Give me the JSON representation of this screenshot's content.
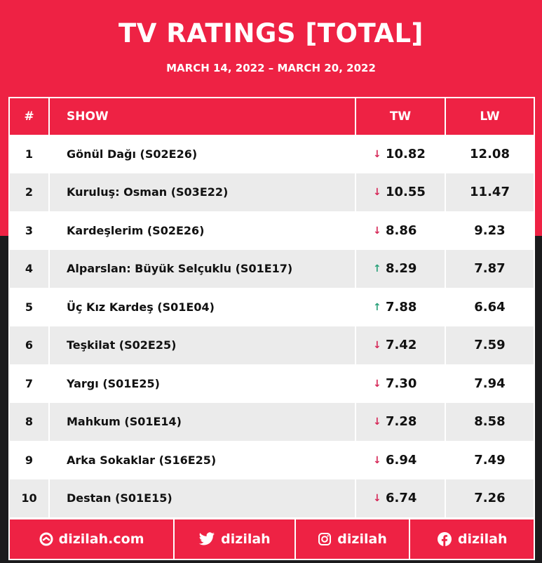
{
  "header": {
    "title": "TV RATINGS [TOTAL]",
    "date_range": "MARCH 14, 2022 – MARCH 20, 2022"
  },
  "table": {
    "columns": [
      "#",
      "SHOW",
      "TW",
      "LW"
    ],
    "rows": [
      {
        "rank": "1",
        "show": "Gönül Dağı (S02E26)",
        "trend": "down",
        "tw": "10.82",
        "lw": "12.08"
      },
      {
        "rank": "2",
        "show": "Kuruluş: Osman (S03E22)",
        "trend": "down",
        "tw": "10.55",
        "lw": "11.47"
      },
      {
        "rank": "3",
        "show": "Kardeşlerim (S02E26)",
        "trend": "down",
        "tw": "8.86",
        "lw": "9.23"
      },
      {
        "rank": "4",
        "show": "Alparslan: Büyük Selçuklu (S01E17)",
        "trend": "up",
        "tw": "8.29",
        "lw": "7.87"
      },
      {
        "rank": "5",
        "show": "Üç Kız Kardeş (S01E04)",
        "trend": "up",
        "tw": "7.88",
        "lw": "6.64"
      },
      {
        "rank": "6",
        "show": "Teşkilat (S02E25)",
        "trend": "down",
        "tw": "7.42",
        "lw": "7.59"
      },
      {
        "rank": "7",
        "show": "Yargı (S01E25)",
        "trend": "down",
        "tw": "7.30",
        "lw": "7.94"
      },
      {
        "rank": "8",
        "show": "Mahkum (S01E14)",
        "trend": "down",
        "tw": "7.28",
        "lw": "8.58"
      },
      {
        "rank": "9",
        "show": "Arka Sokaklar (S16E25)",
        "trend": "down",
        "tw": "6.94",
        "lw": "7.49"
      },
      {
        "rank": "10",
        "show": "Destan (S01E15)",
        "trend": "down",
        "tw": "6.74",
        "lw": "7.26"
      }
    ]
  },
  "footer": {
    "website": "dizilah.com",
    "twitter": "dizilah",
    "instagram": "dizilah",
    "facebook": "dizilah"
  },
  "colors": {
    "brand_red": "#ee2244",
    "dark": "#1b1b1d",
    "trend_down": "#d62858",
    "trend_up": "#2aa17a",
    "row_alt": "#ebebeb"
  },
  "icons": {
    "trend_down": "arrow-down-icon",
    "trend_up": "arrow-up-icon",
    "website": "dizilah-logo-icon",
    "twitter": "twitter-bird-icon",
    "instagram": "instagram-icon",
    "facebook": "facebook-icon"
  }
}
